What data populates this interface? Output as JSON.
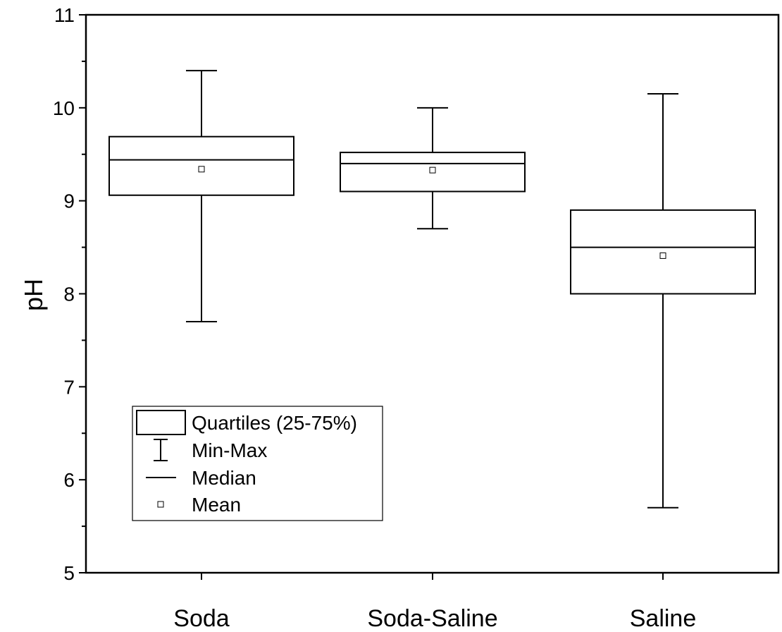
{
  "chart_data": {
    "type": "box",
    "categories": [
      "Soda",
      "Soda-Saline",
      "Saline"
    ],
    "boxes": [
      {
        "category": "Soda",
        "min": 7.7,
        "q1": 9.06,
        "median": 9.44,
        "q3": 9.69,
        "max": 10.4,
        "mean": 9.34
      },
      {
        "category": "Soda-Saline",
        "min": 8.7,
        "q1": 9.1,
        "median": 9.4,
        "q3": 9.52,
        "max": 10.0,
        "mean": 9.33
      },
      {
        "category": "Saline",
        "min": 5.7,
        "q1": 8.0,
        "median": 8.5,
        "q3": 8.9,
        "max": 10.15,
        "mean": 8.41
      }
    ],
    "xlabel": "",
    "ylabel": "pH",
    "ylim": [
      5,
      11
    ],
    "yticks": [
      "5",
      "6",
      "7",
      "8",
      "9",
      "10",
      "11"
    ],
    "grid": false,
    "legend": {
      "placement": "bottom-left",
      "entries": [
        "Quartiles (25-75%)",
        "Min-Max",
        "Median",
        "Mean"
      ]
    }
  }
}
